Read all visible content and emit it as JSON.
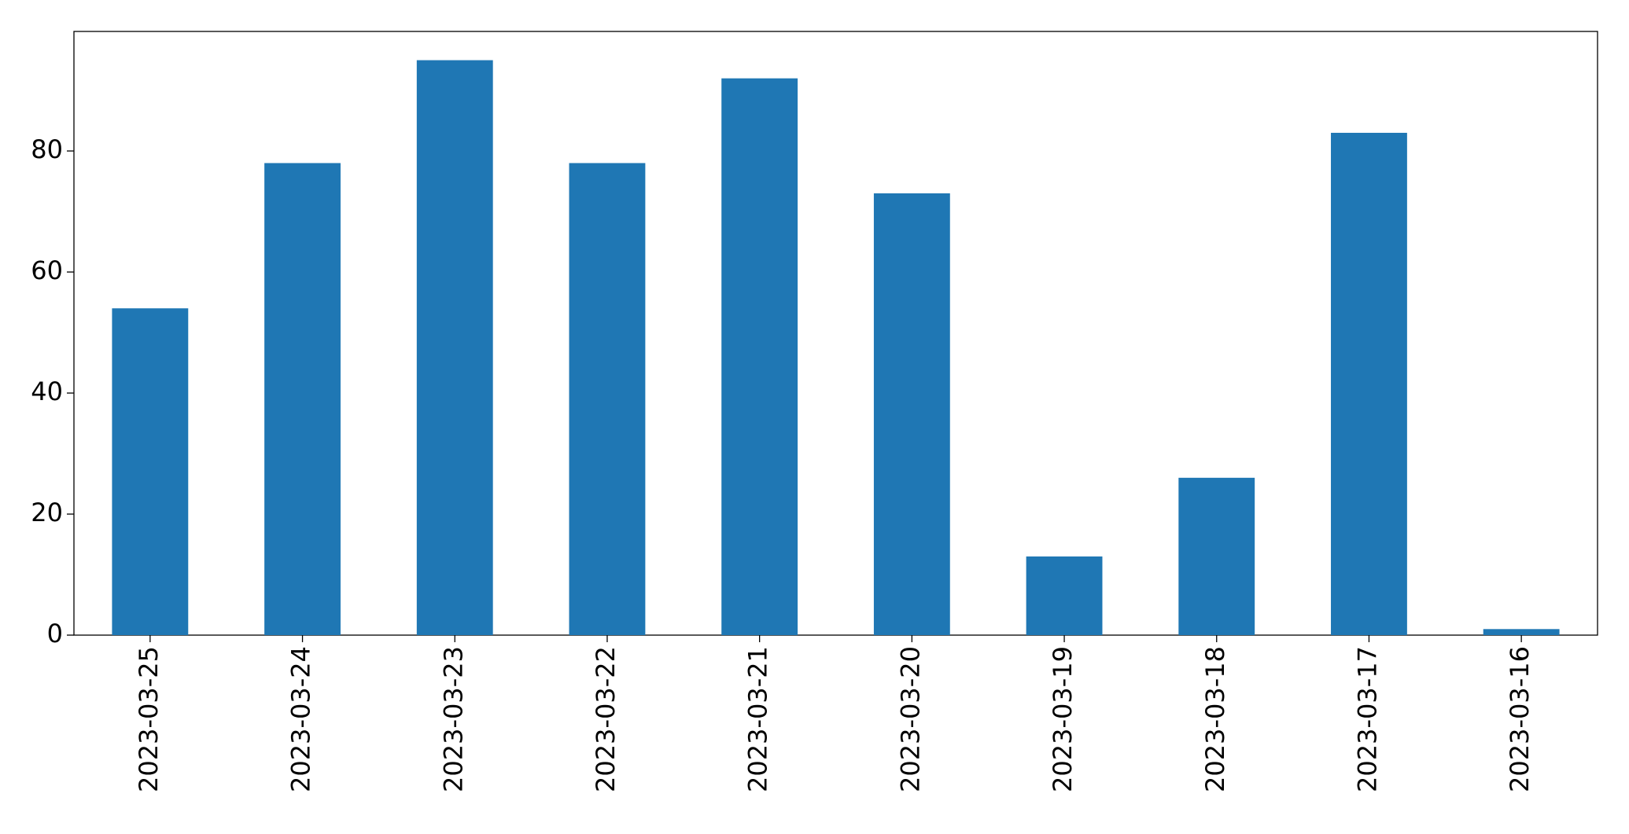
{
  "chart_data": {
    "type": "bar",
    "categories": [
      "2023-03-25",
      "2023-03-24",
      "2023-03-23",
      "2023-03-22",
      "2023-03-21",
      "2023-03-20",
      "2023-03-19",
      "2023-03-18",
      "2023-03-17",
      "2023-03-16"
    ],
    "values": [
      54,
      78,
      95,
      78,
      92,
      73,
      13,
      26,
      83,
      1
    ],
    "color": "#1f77b4",
    "ylim": [
      0,
      99.75
    ],
    "yticks": [
      0,
      20,
      40,
      60,
      80
    ],
    "grid": false
  }
}
